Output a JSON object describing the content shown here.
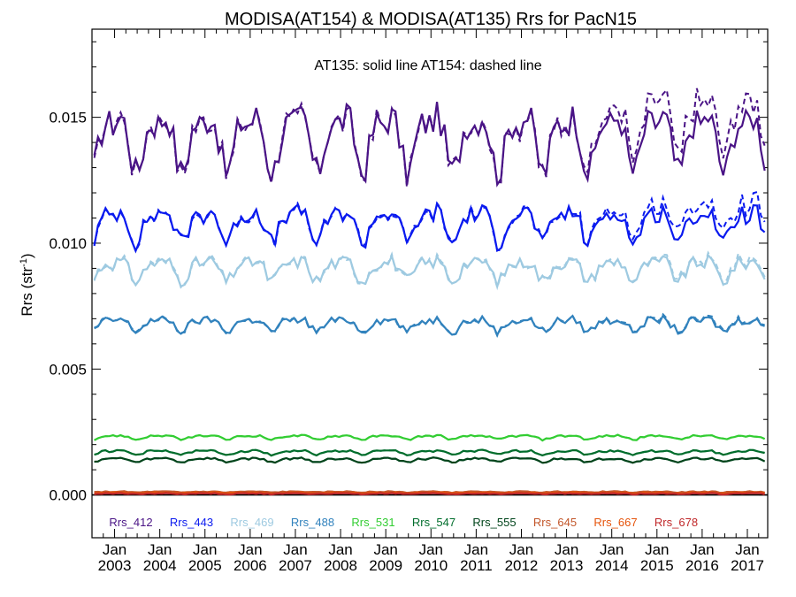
{
  "chart_data": {
    "type": "line",
    "title": "MODISA(AT154) & MODISA(AT135)  Rrs for PacN15",
    "annotation": "AT135: solid line   AT154: dashed line",
    "ylabel": "Rrs (str",
    "ylabel_sup": "-1",
    "ylabel_close": ")",
    "ylim": [
      -0.0017,
      0.0185
    ],
    "xlim": [
      2002.5,
      2017.45
    ],
    "x_tick_top": [
      "Jan",
      "Jan",
      "Jan",
      "Jan",
      "Jan",
      "Jan",
      "Jan",
      "Jan",
      "Jan",
      "Jan",
      "Jan",
      "Jan",
      "Jan",
      "Jan",
      "Jan"
    ],
    "x_tick_years": [
      "2003",
      "2004",
      "2005",
      "2006",
      "2007",
      "2008",
      "2009",
      "2010",
      "2011",
      "2012",
      "2013",
      "2014",
      "2015",
      "2016",
      "2017"
    ],
    "y_ticks": [
      "0.000",
      "0.005",
      "0.010",
      "0.015"
    ],
    "y_tick_values": [
      0.0,
      0.005,
      0.01,
      0.015
    ],
    "grid": false,
    "legend_position": "bottom",
    "legend_note": "solid = AT135, dashed = AT154",
    "series": [
      {
        "name": "Rrs_412",
        "color": "#4a1486",
        "mean": 0.0142,
        "amp": 0.0014,
        "noise": 0.0006,
        "bias": 0.0002,
        "late_bias": 0.0009
      },
      {
        "name": "Rrs_443",
        "color": "#0a1aef",
        "mean": 0.0108,
        "amp": 0.0008,
        "noise": 0.00035,
        "bias": 0.0001,
        "late_bias": 0.0005
      },
      {
        "name": "Rrs_469",
        "color": "#9ecae1",
        "mean": 0.009,
        "amp": 0.0005,
        "noise": 0.00025,
        "bias": 0.0001,
        "late_bias": 0.0001
      },
      {
        "name": "Rrs_488",
        "color": "#3182bd",
        "mean": 0.0068,
        "amp": 0.0003,
        "noise": 0.00015,
        "bias": 5e-05,
        "late_bias": 5e-05
      },
      {
        "name": "Rrs_531",
        "color": "#32cd32",
        "mean": 0.0023,
        "amp": 0.0001,
        "noise": 4e-05,
        "bias": 0.0,
        "late_bias": 0.0
      },
      {
        "name": "Rrs_547",
        "color": "#006d2c",
        "mean": 0.0017,
        "amp": 0.0001,
        "noise": 4e-05,
        "bias": 0.0,
        "late_bias": 0.0
      },
      {
        "name": "Rrs_555",
        "color": "#00441b",
        "mean": 0.0014,
        "amp": 0.0001,
        "noise": 4e-05,
        "bias": 0.0,
        "late_bias": 0.0
      },
      {
        "name": "Rrs_645",
        "color": "#c2562a",
        "mean": 0.00012,
        "amp": 2e-05,
        "noise": 2e-05,
        "bias": 0.0,
        "late_bias": 0.0
      },
      {
        "name": "Rrs_667",
        "color": "#e6550d",
        "mean": 8e-05,
        "amp": 2e-05,
        "noise": 2e-05,
        "bias": 0.0,
        "late_bias": 0.0
      },
      {
        "name": "Rrs_678",
        "color": "#c0282a",
        "mean": 5e-05,
        "amp": 2e-05,
        "noise": 2e-05,
        "bias": 0.0,
        "late_bias": 0.0
      }
    ]
  }
}
